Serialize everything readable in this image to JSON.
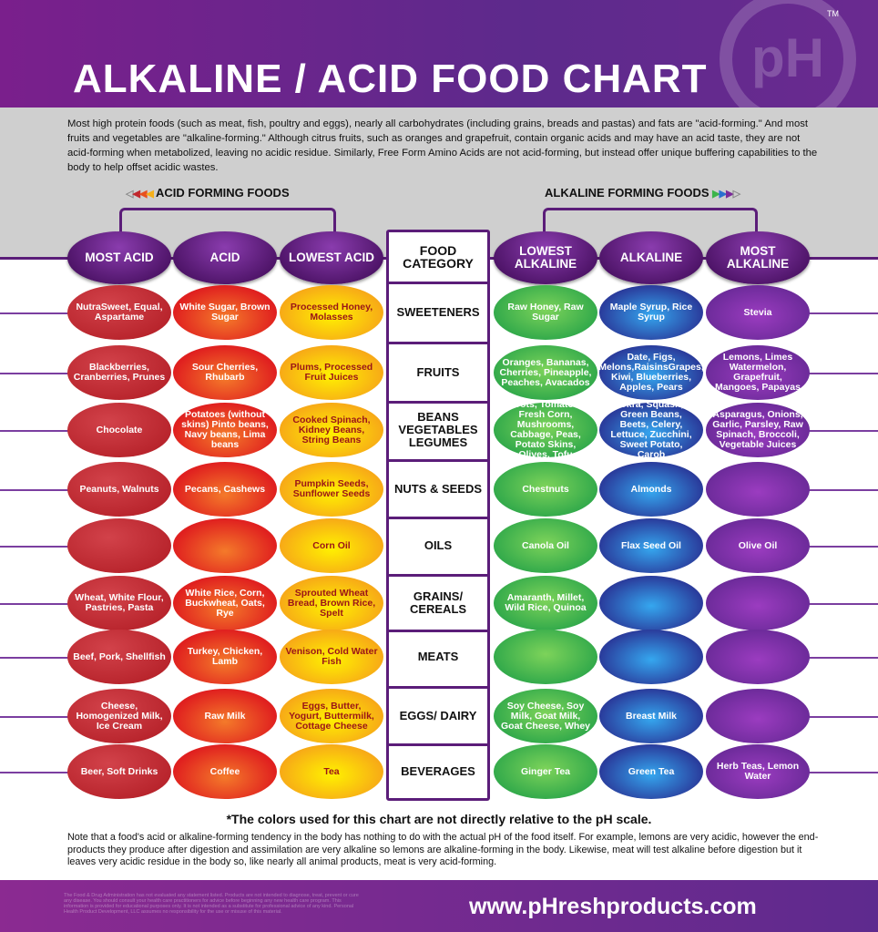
{
  "title": "ALKALINE / ACID FOOD CHART",
  "logo": {
    "text": "pH",
    "trademark": "TM"
  },
  "intro": "Most high protein foods (such as meat, fish, poultry and eggs), nearly all carbohydrates (including grains, breads and pastas) and fats are \"acid-forming.\" And most fruits and vegetables are \"alkaline-forming.\" Although citrus fruits, such as oranges and grapefruit, contain organic acids and may have an acid taste, they are not acid-forming when metabolized, leaving no acidic residue. Similarly, Free Form Amino Acids are not acid-forming, but instead offer unique buffering capabilities to the body to help offset acidic wastes.",
  "acid_label": "ACID FORMING FOODS",
  "alkaline_label": "ALKALINE FORMING FOODS",
  "columns": [
    "MOST ACID",
    "ACID",
    "LOWEST ACID",
    "FOOD CATEGORY",
    "LOWEST ALKALINE",
    "ALKALINE",
    "MOST ALKALINE"
  ],
  "colors": {
    "most_acid": "#b8242c",
    "acid": "#e0201f",
    "lowest_acid": "#f6a01a",
    "lowest_alkaline": "#2fa84a",
    "alkaline": "#2a3c9c",
    "most_alkaline": "#6a2a98",
    "header": "#5b1d79"
  },
  "rows": [
    {
      "category": "SWEETENERS",
      "cells": [
        "NutraSweet, Equal, Aspartame",
        "White Sugar, Brown Sugar",
        "Processed Honey, Molasses",
        "Raw Honey, Raw Sugar",
        "Maple Syrup, Rice Syrup",
        "Stevia"
      ]
    },
    {
      "category": "FRUITS",
      "cells": [
        "Blackberries, Cranberries, Prunes",
        "Sour Cherries, Rhubarb",
        "Plums, Processed Fruit Juices",
        "Oranges, Bananas, Cherries, Pineapple, Peaches, Avacados",
        "Date, Figs, Melons,RaisinsGrapes, Kiwi, Blueberries, Apples, Pears",
        "Lemons, Limes Watermelon, Grapefruit, Mangoes, Papayas"
      ]
    },
    {
      "category": "BEANS VEGETABLES LEGUMES",
      "cells": [
        "Chocolate",
        "Potatoes (without skins) Pinto beans, Navy beans, Lima beans",
        "Cooked Spinach, Kidney Beans, String Beans",
        "Carots, Tomatoes, Fresh Corn, Mushrooms, Cabbage, Peas, Potato Skins, Olives, Tofu",
        "Okra, Squash, Green Beans, Beets, Celery, Lettuce, Zucchini, Sweet Potato, Carob",
        "Asparagus, Onions, Garlic, Parsley, Raw Spinach, Broccoli, Vegetable Juices"
      ]
    },
    {
      "category": "NUTS & SEEDS",
      "cells": [
        "Peanuts, Walnuts",
        "Pecans, Cashews",
        "Pumpkin Seeds, Sunflower Seeds",
        "Chestnuts",
        "Almonds",
        ""
      ]
    },
    {
      "category": "OILS",
      "cells": [
        "",
        "",
        "Corn Oil",
        "Canola Oil",
        "Flax Seed Oil",
        "Olive Oil"
      ]
    },
    {
      "category": "GRAINS/ CEREALS",
      "cells": [
        "Wheat, White Flour, Pastries, Pasta",
        "White Rice, Corn, Buckwheat, Oats, Rye",
        "Sprouted Wheat Bread, Brown Rice, Spelt",
        "Amaranth, Millet, Wild Rice, Quinoa",
        "",
        ""
      ]
    },
    {
      "category": "MEATS",
      "cells": [
        "Beef, Pork, Shellfish",
        "Turkey, Chicken, Lamb",
        "Venison, Cold Water Fish",
        "",
        "",
        ""
      ]
    },
    {
      "category": "EGGS/ DAIRY",
      "cells": [
        "Cheese, Homogenized Milk, Ice Cream",
        "Raw Milk",
        "Eggs, Butter, Yogurt, Buttermilk, Cottage Cheese",
        "Soy Cheese, Soy Milk, Goat Milk, Goat Cheese, Whey",
        "Breast Milk",
        ""
      ]
    },
    {
      "category": "BEVERAGES",
      "cells": [
        "Beer, Soft Drinks",
        "Coffee",
        "Tea",
        "Ginger Tea",
        "Green Tea",
        "Herb Teas, Lemon Water"
      ]
    }
  ],
  "footnote": "*The colors used for this chart are not directly relative to the pH scale.",
  "note": "Note that a food's acid or alkaline-forming tendency in the body has nothing to do with the actual pH of the food itself. For example, lemons are very acidic, however the end-products they produce after digestion and assimilation are very alkaline so lemons are alkaline-forming in the body. Likewise, meat will test alkaline before digestion but it leaves very acidic residue in the body so, like nearly all animal products, meat is very acid-forming.",
  "disclaimer": "The Food & Drug Administration has not evaluated any statement listed. Products are not intended to diagnose, treat, prevent or cure any disease. You should consult your health care practitioners for advice before beginning any new health care program. This information is provided for educational purposes only. It is not intended as a substitute for professional advice of any kind. Personal Health Product Development, LLC assumes no responsibility for the use or misuse of this material.",
  "url": "www.pHreshproducts.com"
}
